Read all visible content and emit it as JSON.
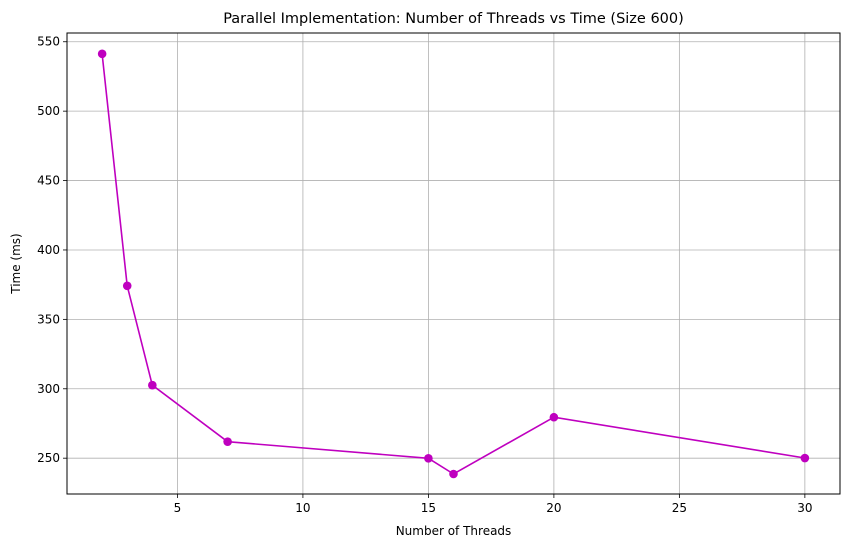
{
  "chart_data": {
    "type": "line",
    "title": "Parallel Implementation: Number of Threads vs Time (Size 600)",
    "xlabel": "Number of Threads",
    "ylabel": "Time (ms)",
    "xlim": [
      0.6,
      31.4
    ],
    "ylim": [
      224.2,
      556.3
    ],
    "xticks": [
      5,
      10,
      15,
      20,
      25,
      30
    ],
    "yticks": [
      250,
      300,
      350,
      400,
      450,
      500,
      550
    ],
    "grid": true,
    "series": [
      {
        "color": "#bf00bf",
        "marker": "circle",
        "x": [
          2,
          3,
          4,
          7,
          15,
          16,
          20,
          30
        ],
        "y": [
          541.3,
          374.2,
          302.6,
          261.9,
          249.9,
          238.6,
          279.5,
          250.1
        ]
      }
    ]
  }
}
